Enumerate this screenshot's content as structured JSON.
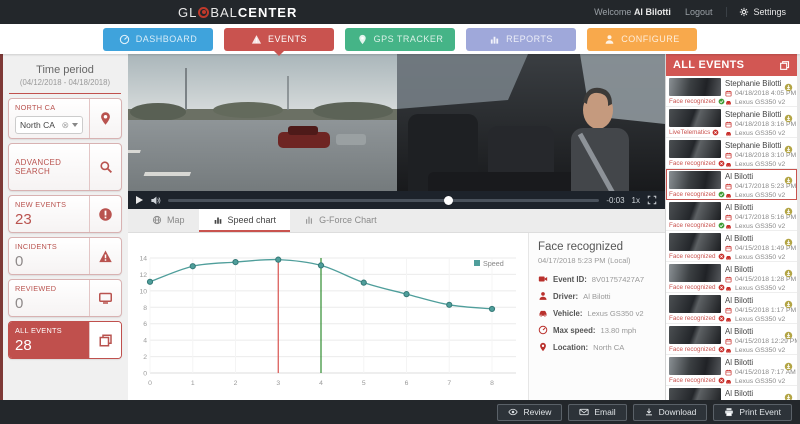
{
  "header": {
    "logo_pre": "GL",
    "logo_mid": "BAL",
    "logo_bold": "CENTER",
    "welcome_prefix": "Welcome",
    "user": "Al Bilotti",
    "logout": "Logout",
    "settings": "Settings"
  },
  "nav": {
    "items": [
      {
        "label": "DASHBOARD",
        "color": "#3fa3dc",
        "icon": "gauge",
        "active": false
      },
      {
        "label": "EVENTS",
        "color": "#c9534f",
        "icon": "warning",
        "active": true
      },
      {
        "label": "GPS TRACKER",
        "color": "#45b487",
        "icon": "pin",
        "active": false
      },
      {
        "label": "REPORTS",
        "color": "#9fa8da",
        "icon": "chart",
        "active": false
      },
      {
        "label": "CONFIGURE",
        "color": "#f8a94c",
        "icon": "person",
        "active": false
      }
    ]
  },
  "sidebar": {
    "time_period_title": "Time period",
    "time_period_range": "(04/12/2018 - 04/18/2018)",
    "location_card": {
      "label": "NORTH CA",
      "value": "North CA"
    },
    "advanced_search_label": "ADVANCED SEARCH",
    "counters": [
      {
        "label": "NEW EVENTS",
        "value": "23",
        "icon": "alert",
        "accent": true,
        "active": false
      },
      {
        "label": "INCIDENTS",
        "value": "0",
        "icon": "warning",
        "accent": false,
        "active": false
      },
      {
        "label": "REVIEWED",
        "value": "0",
        "icon": "monitor",
        "accent": false,
        "active": false
      },
      {
        "label": "ALL EVENTS",
        "value": "28",
        "icon": "copy",
        "accent": true,
        "active": true
      }
    ]
  },
  "video": {
    "remaining_time": "-0:03",
    "playback_rate": "1x",
    "progress_pct": 65
  },
  "tabs": [
    {
      "label": "Map",
      "icon": "globe",
      "active": false
    },
    {
      "label": "Speed chart",
      "icon": "chart",
      "active": true
    },
    {
      "label": "G-Force Chart",
      "icon": "gforce",
      "active": false
    }
  ],
  "chart_data": {
    "type": "line",
    "title": "",
    "xlabel": "",
    "ylabel": "",
    "x": [
      0,
      1,
      2,
      3,
      4,
      5,
      6,
      7,
      8
    ],
    "series": [
      {
        "name": "Speed",
        "color": "#4f9e9b",
        "values": [
          11.1,
          13.0,
          13.5,
          13.8,
          13.1,
          11.0,
          9.6,
          8.3,
          7.8
        ]
      }
    ],
    "ylim": [
      0,
      14
    ],
    "ytick_step": 2,
    "markers": [
      {
        "x": 3,
        "color": "#d9534f"
      },
      {
        "x": 4,
        "color": "#2e8b2e"
      }
    ],
    "legend_position": "top-right",
    "grid": true
  },
  "details": {
    "title": "Face recognized",
    "timestamp": "04/17/2018 5:23 PM (Local)",
    "rows": [
      {
        "icon": "camera",
        "label": "Event ID:",
        "value": "8V01757427A7"
      },
      {
        "icon": "person",
        "label": "Driver:",
        "value": "Al Bilotti"
      },
      {
        "icon": "car",
        "label": "Vehicle:",
        "value": "Lexus GS350 v2"
      },
      {
        "icon": "gauge",
        "label": "Max speed:",
        "value": "13.80 mph"
      },
      {
        "icon": "pin",
        "label": "Location:",
        "value": "North CA"
      }
    ]
  },
  "events_panel": {
    "title": "ALL EVENTS",
    "items": [
      {
        "name": "Stephanie Bilotti",
        "datetime": "04/18/2018 4:05 PM",
        "vehicle": "Lexus GS350 v2",
        "badge": "Face recognized",
        "badge_state": "ok",
        "selected": false
      },
      {
        "name": "Stephanie Bilotti",
        "datetime": "04/18/2018 3:16 PM",
        "vehicle": "Lexus GS350 v2",
        "badge": "LiveTelematics",
        "badge_state": "alert",
        "selected": false
      },
      {
        "name": "Stephanie Bilotti",
        "datetime": "04/18/2018 3:10 PM",
        "vehicle": "Lexus GS350 v2",
        "badge": "Face recognized",
        "badge_state": "alert",
        "selected": false
      },
      {
        "name": "Al Bilotti",
        "datetime": "04/17/2018 5:23 PM",
        "vehicle": "Lexus GS350 v2",
        "badge": "Face recognized",
        "badge_state": "ok",
        "selected": true
      },
      {
        "name": "Al Bilotti",
        "datetime": "04/17/2018 5:16 PM",
        "vehicle": "Lexus GS350 v2",
        "badge": "Face recognized",
        "badge_state": "ok",
        "selected": false
      },
      {
        "name": "Al Bilotti",
        "datetime": "04/15/2018 1:49 PM",
        "vehicle": "Lexus GS350 v2",
        "badge": "Face recognized",
        "badge_state": "alert",
        "selected": false
      },
      {
        "name": "Al Bilotti",
        "datetime": "04/15/2018 1:28 PM",
        "vehicle": "Lexus GS350 v2",
        "badge": "Face recognized",
        "badge_state": "alert",
        "selected": false
      },
      {
        "name": "Al Bilotti",
        "datetime": "04/15/2018 1:17 PM",
        "vehicle": "Lexus GS350 v2",
        "badge": "Face recognized",
        "badge_state": "alert",
        "selected": false
      },
      {
        "name": "Al Bilotti",
        "datetime": "04/15/2018 12:29 PM",
        "vehicle": "Lexus GS350 v2",
        "badge": "Face recognized",
        "badge_state": "alert",
        "selected": false
      },
      {
        "name": "Al Bilotti",
        "datetime": "04/15/2018 7:17 AM",
        "vehicle": "Lexus GS350 v2",
        "badge": "Face recognized",
        "badge_state": "alert",
        "selected": false
      },
      {
        "name": "Al Bilotti",
        "datetime": "",
        "vehicle": "",
        "badge": "",
        "badge_state": "none",
        "selected": false
      }
    ]
  },
  "footer": {
    "buttons": [
      {
        "label": "Review",
        "icon": "eye"
      },
      {
        "label": "Email",
        "icon": "email"
      },
      {
        "label": "Download",
        "icon": "download"
      },
      {
        "label": "Print Event",
        "icon": "printer"
      }
    ]
  },
  "colors": {
    "accent_red": "#c9534f",
    "teal": "#4f9e9b",
    "header_dark": "#23272b"
  }
}
